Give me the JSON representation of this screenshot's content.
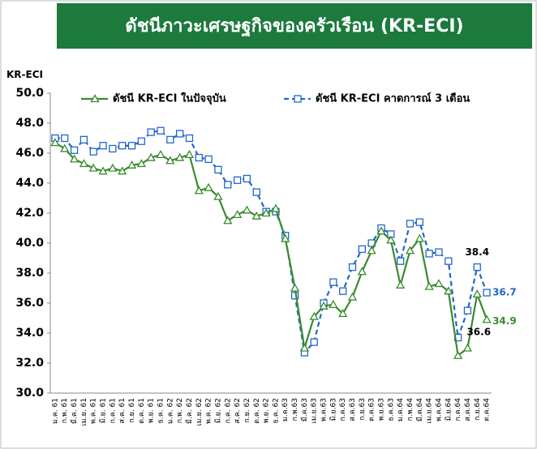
{
  "chart_data": {
    "type": "line",
    "title": "ดัชนีภาวะเศรษฐกิจของครัวเรือน (KR-ECI)",
    "y_label": "KR-ECI",
    "categories": [
      "ม.ค. 61",
      "ก.พ. 61",
      "มี.ค. 61",
      "เม.ย. 61",
      "พ.ค. 61",
      "มิ.ย. 61",
      "ก.ค. 61",
      "ส.ค. 61",
      "ก.ย. 61",
      "ต.ค. 61",
      "พ.ย. 61",
      "ธ.ค. 61",
      "ม.ค. 62",
      "ก.พ. 62",
      "มี.ค. 62",
      "เม.ย. 62",
      "พ.ค. 62",
      "มิ.ย. 62",
      "ก.ค. 62",
      "ส.ค. 62",
      "ก.ย. 62",
      "ต.ค. 62",
      "พ.ย. 62",
      "ธ.ค. 62",
      "ม.ค.63",
      "ก.พ.63",
      "มี.ค.63",
      "เม.ย.63",
      "พ.ค.63",
      "มิ.ย.63",
      "ก.ค.63",
      "ส.ค.63",
      "ก.ย.63",
      "ต.ค.63",
      "พ.ย.63",
      "ธ.ค.63",
      "ม.ค.64",
      "ก.พ.64",
      "มี.ค.64",
      "เม.ย.64",
      "พ.ค.64",
      "มิ.ย.64",
      "ก.ค.64",
      "ส.ค.64",
      "ก.ย.64",
      "ต.ค.64"
    ],
    "series": [
      {
        "name": "ดัชนี KR-ECI ในปัจจุบัน",
        "color": "#3a8a2e",
        "marker": "triangle",
        "dashed": false,
        "values": [
          46.7,
          46.3,
          45.6,
          45.3,
          45.0,
          44.8,
          45.0,
          44.8,
          45.2,
          45.3,
          45.7,
          45.9,
          45.5,
          45.7,
          45.9,
          43.5,
          43.7,
          43.1,
          41.5,
          41.9,
          42.2,
          41.8,
          42.0,
          42.3,
          40.3,
          37.0,
          33.0,
          35.1,
          35.8,
          35.9,
          35.3,
          36.4,
          38.1,
          39.5,
          40.8,
          40.2,
          37.2,
          39.5,
          40.3,
          37.1,
          37.3,
          36.8,
          32.5,
          33.0,
          36.6,
          34.9
        ]
      },
      {
        "name": "ดัชนี KR-ECI คาดการณ์ 3 เดือน",
        "color": "#2266cc",
        "marker": "square",
        "dashed": true,
        "values": [
          47.0,
          47.0,
          46.2,
          46.9,
          46.1,
          46.5,
          46.3,
          46.5,
          46.5,
          46.8,
          47.4,
          47.5,
          46.9,
          47.3,
          47.0,
          45.7,
          45.6,
          44.9,
          43.9,
          44.2,
          44.3,
          43.4,
          42.1,
          42.1,
          40.5,
          36.5,
          32.7,
          33.4,
          36.0,
          37.4,
          36.8,
          38.4,
          39.6,
          40.0,
          41.0,
          40.6,
          38.8,
          41.3,
          41.4,
          39.3,
          39.4,
          38.8,
          33.7,
          35.5,
          38.4,
          36.7
        ]
      }
    ],
    "ylim": [
      30,
      50
    ],
    "yticks": [
      {
        "value": 30,
        "label": "30.0"
      },
      {
        "value": 32,
        "label": "32.0"
      },
      {
        "value": 34,
        "label": "34.0"
      },
      {
        "value": 36,
        "label": "36.0"
      },
      {
        "value": 38,
        "label": "38.0"
      },
      {
        "value": 40,
        "label": "40.0"
      },
      {
        "value": 42,
        "label": "42.0"
      },
      {
        "value": 44,
        "label": "44.0"
      },
      {
        "value": 46,
        "label": "46.0"
      },
      {
        "value": 48,
        "label": "48.0"
      },
      {
        "value": 50,
        "label": "50.0"
      }
    ],
    "grid": false
  }
}
